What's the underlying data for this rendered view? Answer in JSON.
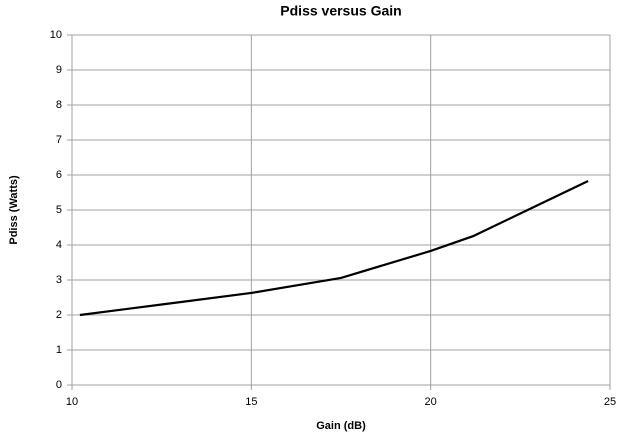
{
  "chart_data": {
    "type": "line",
    "title": "Pdiss versus Gain",
    "x_label": "Gain (dB)",
    "y_label": "Pdiss (Watts)",
    "x": [
      10.22,
      12.5,
      15,
      17.5,
      20,
      21.2,
      22.5,
      24.39
    ],
    "series": [
      {
        "name": "Pdiss",
        "color": "#000000",
        "values": [
          2.0,
          2.3,
          2.63,
          3.06,
          3.83,
          4.26,
          4.9,
          5.83
        ]
      }
    ],
    "xlim": [
      10,
      25
    ],
    "xticks": [
      10,
      15,
      20,
      25
    ],
    "ylim": [
      0,
      10
    ],
    "yticks": [
      0,
      1,
      2,
      3,
      4,
      5,
      6,
      7,
      8,
      9,
      10
    ],
    "grid": true
  }
}
